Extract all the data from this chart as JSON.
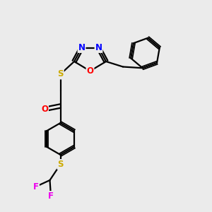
{
  "bg_color": "#ebebeb",
  "atom_colors": {
    "C": "#000000",
    "N": "#0000ff",
    "O": "#ff0000",
    "S": "#ccaa00",
    "F": "#ee00ee",
    "H": "#000000"
  },
  "bond_color": "#000000",
  "figsize": [
    3.0,
    3.0
  ],
  "dpi": 100,
  "xlim": [
    0,
    10
  ],
  "ylim": [
    0,
    10
  ]
}
